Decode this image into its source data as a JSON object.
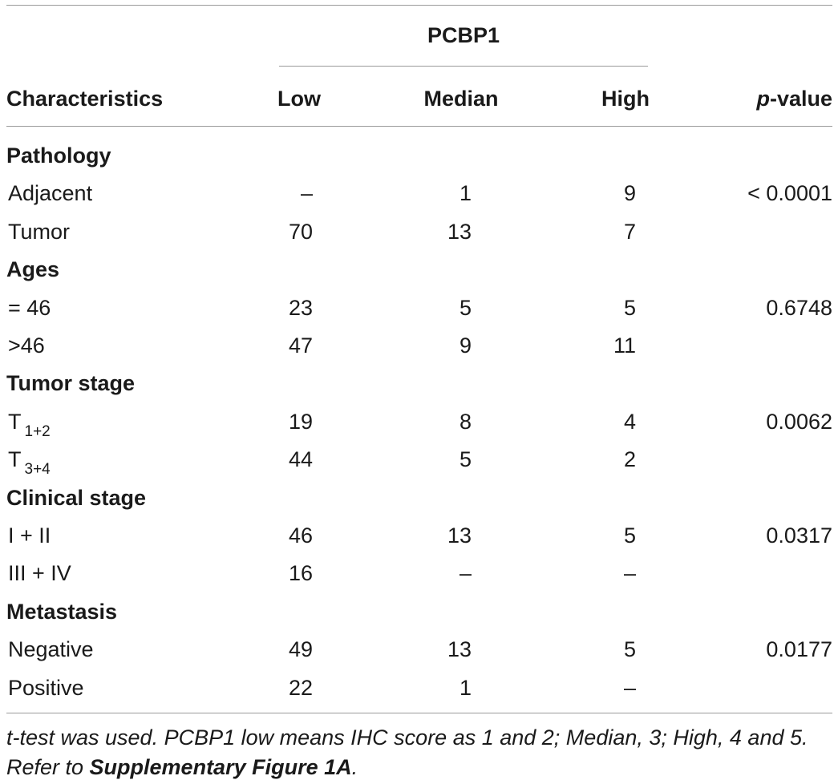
{
  "header": {
    "group_label": "PCBP1",
    "characteristics": "Characteristics",
    "low": "Low",
    "median": "Median",
    "high": "High",
    "p_prefix": "p",
    "p_suffix": "-value"
  },
  "sections": [
    {
      "title": "Pathology",
      "rows": [
        {
          "label": "Adjacent",
          "sub": "",
          "low": "–",
          "median": "1",
          "high": "9",
          "p": "< 0.0001"
        },
        {
          "label": "Tumor",
          "sub": "",
          "low": "70",
          "median": "13",
          "high": "7",
          "p": ""
        }
      ]
    },
    {
      "title": "Ages",
      "rows": [
        {
          "label": "= 46",
          "sub": "",
          "low": "23",
          "median": "5",
          "high": "5",
          "p": "0.6748"
        },
        {
          "label": ">46",
          "sub": "",
          "low": "47",
          "median": "9",
          "high": "11",
          "p": ""
        }
      ]
    },
    {
      "title": "Tumor stage",
      "rows": [
        {
          "label": "T",
          "sub": "1+2",
          "low": "19",
          "median": "8",
          "high": "4",
          "p": "0.0062"
        },
        {
          "label": "T",
          "sub": "3+4",
          "low": "44",
          "median": "5",
          "high": "2",
          "p": ""
        }
      ]
    },
    {
      "title": "Clinical stage",
      "rows": [
        {
          "label": "I + II",
          "sub": "",
          "low": "46",
          "median": "13",
          "high": "5",
          "p": "0.0317"
        },
        {
          "label": "III + IV",
          "sub": "",
          "low": "16",
          "median": "–",
          "high": "–",
          "p": ""
        }
      ]
    },
    {
      "title": "Metastasis",
      "rows": [
        {
          "label": "Negative",
          "sub": "",
          "low": "49",
          "median": "13",
          "high": "5",
          "p": "0.0177"
        },
        {
          "label": "Positive",
          "sub": "",
          "low": "22",
          "median": "1",
          "high": "–",
          "p": ""
        }
      ]
    }
  ],
  "footnote": {
    "text": "t-test was used. PCBP1 low means IHC score as 1 and 2; Median, 3; High, 4 and 5. Refer to ",
    "ref": "Supplementary Figure 1A",
    "end": "."
  }
}
